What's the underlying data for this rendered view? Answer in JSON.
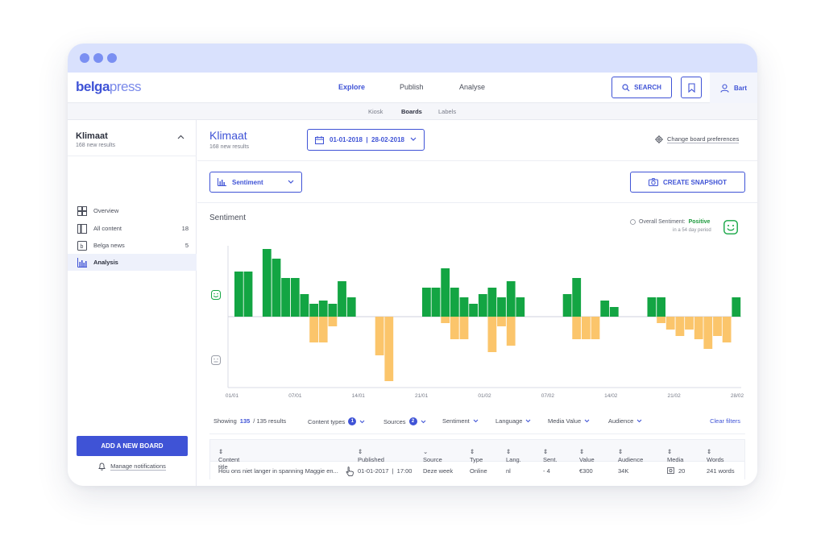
{
  "app": {
    "logo_bold": "belga",
    "logo_light": "press"
  },
  "topnav": {
    "items": [
      "Explore",
      "Publish",
      "Analyse"
    ],
    "search_label": "SEARCH",
    "user_name": "Bart"
  },
  "subnav": {
    "items": [
      "Kiosk",
      "Boards",
      "Labels"
    ]
  },
  "sidebar": {
    "board_title": "Klimaat",
    "board_sub": "168 new results",
    "items": [
      {
        "label": "Overview",
        "count": ""
      },
      {
        "label": "All content",
        "count": "18"
      },
      {
        "label": "Belga news",
        "count": "5"
      },
      {
        "label": "Analysis",
        "count": ""
      }
    ],
    "add_board": "ADD A NEW BOARD",
    "manage_notifications": "Manage notifications"
  },
  "main": {
    "title": "Klimaat",
    "subtitle": "168 new results",
    "date_range": "01-01-2018  |  28-02-2018",
    "prefs_label": "Change board preferences",
    "select_label": "Sentiment",
    "snapshot_label": "CREATE SNAPSHOT",
    "overall_label": "Overall Sentiment:",
    "overall_value": "Positive",
    "overall_period": "in a 54 day period"
  },
  "chart_data": {
    "type": "bar",
    "title": "Sentiment",
    "x_tick_labels": [
      "01/01",
      "07/01",
      "14/01",
      "21/01",
      "01/02",
      "07/02",
      "14/02",
      "21/02",
      "28/02"
    ],
    "ylim": [
      -2,
      2
    ],
    "positive": [
      1.4,
      1.4,
      0,
      2.1,
      1.8,
      1.2,
      1.2,
      0.7,
      0.4,
      0.5,
      0.4,
      1.1,
      0.6,
      0,
      0,
      0,
      0,
      0,
      0,
      0,
      0.9,
      0.9,
      1.5,
      0.9,
      0.6,
      0.4,
      0.7,
      0.9,
      0.6,
      1.1,
      0.6,
      0,
      0,
      0,
      0,
      0.7,
      1.2,
      0,
      0,
      0.5,
      0.3,
      0,
      0,
      0,
      0.6,
      0.6,
      0,
      0,
      0,
      0,
      0,
      0,
      0,
      0.6
    ],
    "negative": [
      0,
      0,
      0,
      0,
      0,
      0,
      0,
      0,
      -0.8,
      -0.8,
      -0.3,
      0,
      0,
      0,
      0,
      -1.2,
      -2.0,
      0,
      0,
      0,
      0,
      0,
      -0.2,
      -0.7,
      -0.7,
      0,
      0,
      -1.1,
      -0.3,
      -0.9,
      0,
      0,
      0,
      0,
      0,
      0,
      -0.7,
      -0.7,
      -0.7,
      0,
      0,
      0,
      0,
      0,
      0,
      -0.2,
      -0.4,
      -0.6,
      -0.4,
      -0.7,
      -1.0,
      -0.6,
      -0.8,
      0
    ]
  },
  "filters": {
    "showing_prefix": "Showing",
    "showing_value": "135",
    "showing_suffix": "/ 135 results",
    "content_types": "Content types",
    "content_types_count": "1",
    "sources": "Sources",
    "sources_count": "2",
    "sentiment": "Sentiment",
    "language": "Language",
    "media_value": "Media Value",
    "audience": "Audience",
    "clear": "Clear filters"
  },
  "table": {
    "headers": [
      "Content title",
      "Published",
      "Source",
      "Type",
      "Lang.",
      "Sent.",
      "Value",
      "Audience",
      "Media",
      "Words"
    ],
    "rows": [
      [
        "Hou ons niet langer in spanning Maggie en...",
        "01-01-2017  |  17:00",
        "Deze week",
        "Online",
        "nl",
        "- 4",
        "€300",
        "34K",
        "20",
        "241 words"
      ]
    ]
  },
  "colors": {
    "accent": "#3f53d6",
    "positive": "#13a543",
    "negative": "#fbc56b"
  }
}
